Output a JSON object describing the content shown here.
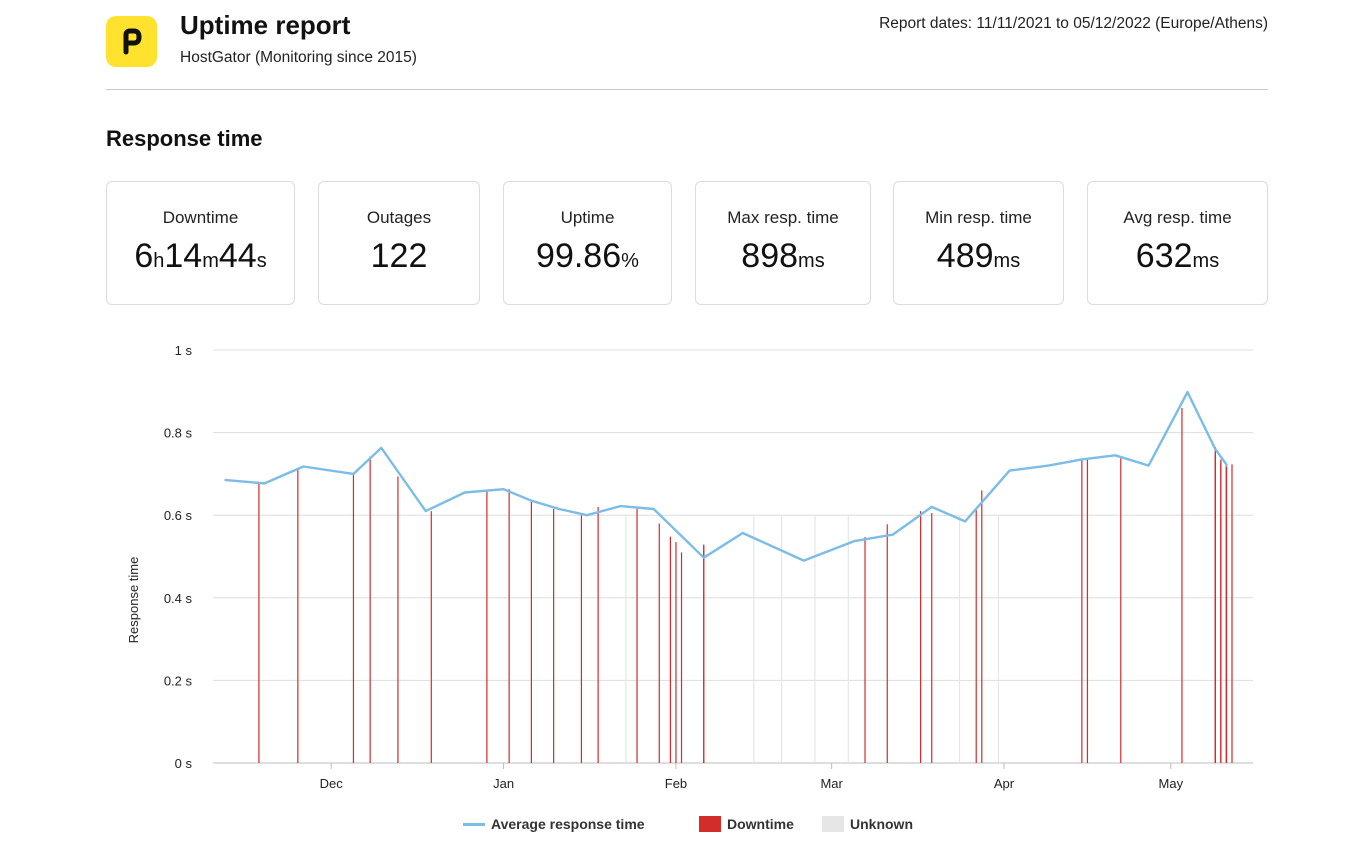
{
  "header": {
    "title": "Uptime report",
    "subtitle": "HostGator (Monitoring since 2015)",
    "report_dates": "Report dates: 11/11/2021 to 05/12/2022 (Europe/Athens)",
    "logo_color": "#ffe22e"
  },
  "section_title": "Response time",
  "stats": [
    {
      "label": "Downtime",
      "parts": [
        [
          "6",
          false
        ],
        [
          "h",
          true
        ],
        [
          "14",
          false
        ],
        [
          "m",
          true
        ],
        [
          "44",
          false
        ],
        [
          "s",
          true
        ]
      ]
    },
    {
      "label": "Outages",
      "parts": [
        [
          "122",
          false
        ]
      ]
    },
    {
      "label": "Uptime",
      "parts": [
        [
          "99.86",
          false
        ],
        [
          "%",
          true
        ]
      ]
    },
    {
      "label": "Max resp. time",
      "parts": [
        [
          "898",
          false
        ],
        [
          "ms",
          true
        ]
      ]
    },
    {
      "label": "Min resp. time",
      "parts": [
        [
          "489",
          false
        ],
        [
          "ms",
          true
        ]
      ]
    },
    {
      "label": "Avg resp. time",
      "parts": [
        [
          "632",
          false
        ],
        [
          "ms",
          true
        ]
      ]
    }
  ],
  "chart_data": {
    "type": "line",
    "title": "",
    "xlabel": "",
    "ylabel": "Response time",
    "y_ticks": [
      "0 s",
      "0.2 s",
      "0.4 s",
      "0.6 s",
      "0.8 s",
      "1 s"
    ],
    "ylim": [
      0,
      1
    ],
    "x_ticks": [
      {
        "label": "Dec",
        "date": "2021-12-01"
      },
      {
        "label": "Jan",
        "date": "2022-01-01"
      },
      {
        "label": "Feb",
        "date": "2022-02-01"
      },
      {
        "label": "Mar",
        "date": "2022-03-01"
      },
      {
        "label": "Apr",
        "date": "2022-04-01"
      },
      {
        "label": "May",
        "date": "2022-05-01"
      }
    ],
    "xlim": [
      "2021-11-11",
      "2022-05-12"
    ],
    "grid": true,
    "legend_position": "bottom-center",
    "series": [
      {
        "name": "Average response time",
        "color": "#7bbde5",
        "points": [
          [
            "2021-11-12",
            0.685
          ],
          [
            "2021-11-19",
            0.677
          ],
          [
            "2021-11-26",
            0.718
          ],
          [
            "2021-12-05",
            0.7
          ],
          [
            "2021-12-10",
            0.763
          ],
          [
            "2021-12-18",
            0.61
          ],
          [
            "2021-12-25",
            0.655
          ],
          [
            "2022-01-01",
            0.663
          ],
          [
            "2022-01-06",
            0.635
          ],
          [
            "2022-01-11",
            0.615
          ],
          [
            "2022-01-16",
            0.6
          ],
          [
            "2022-01-22",
            0.622
          ],
          [
            "2022-01-28",
            0.615
          ],
          [
            "2022-02-06",
            0.497
          ],
          [
            "2022-02-13",
            0.557
          ],
          [
            "2022-02-24",
            0.49
          ],
          [
            "2022-03-05",
            0.537
          ],
          [
            "2022-03-12",
            0.553
          ],
          [
            "2022-03-19",
            0.62
          ],
          [
            "2022-03-25",
            0.585
          ],
          [
            "2022-04-02",
            0.708
          ],
          [
            "2022-04-09",
            0.72
          ],
          [
            "2022-04-15",
            0.735
          ],
          [
            "2022-04-21",
            0.745
          ],
          [
            "2022-04-27",
            0.72
          ],
          [
            "2022-05-04",
            0.898
          ],
          [
            "2022-05-09",
            0.76
          ],
          [
            "2022-05-11",
            0.723
          ],
          [
            "2022-05-11",
            0.72
          ]
        ]
      }
    ],
    "downtime": {
      "name": "Downtime",
      "color": "#d42b2b",
      "dates": [
        "2021-11-18",
        "2021-11-25",
        "2021-12-05",
        "2021-12-08",
        "2021-12-13",
        "2021-12-19",
        "2021-12-29",
        "2022-01-02",
        "2022-01-06",
        "2022-01-10",
        "2022-01-15",
        "2022-01-18",
        "2022-01-25",
        "2022-01-29",
        "2022-01-31",
        "2022-02-01",
        "2022-02-02",
        "2022-02-06",
        "2022-02-06",
        "2022-03-07",
        "2022-03-11",
        "2022-03-17",
        "2022-03-19",
        "2022-03-27",
        "2022-03-28",
        "2022-04-15",
        "2022-04-16",
        "2022-04-22",
        "2022-05-03",
        "2022-05-09",
        "2022-05-09",
        "2022-05-09",
        "2022-05-10",
        "2022-05-10",
        "2022-05-10",
        "2022-05-11",
        "2022-05-11",
        "2022-05-11",
        "2022-05-11",
        "2022-05-12"
      ],
      "values": [
        0.677,
        0.709,
        0.7,
        0.742,
        0.694,
        0.61,
        0.659,
        0.663,
        0.635,
        0.615,
        0.6,
        0.62,
        0.615,
        0.58,
        0.548,
        0.535,
        0.51,
        0.529,
        0.525,
        0.547,
        0.578,
        0.61,
        0.605,
        0.615,
        0.66,
        0.735,
        0.737,
        0.738,
        0.86,
        0.765,
        0.76,
        0.745,
        0.735,
        0.73,
        0.725,
        0.725,
        0.722,
        0.72,
        0.72,
        0.723
      ]
    },
    "unknown": {
      "name": "Unknown",
      "color": "#e6e6e6",
      "dates": [
        "2022-01-23",
        "2022-02-15",
        "2022-02-20",
        "2022-02-26",
        "2022-03-04",
        "2022-03-24",
        "2022-03-31",
        "2022-05-10",
        "2022-05-11",
        "2022-05-12"
      ]
    }
  }
}
